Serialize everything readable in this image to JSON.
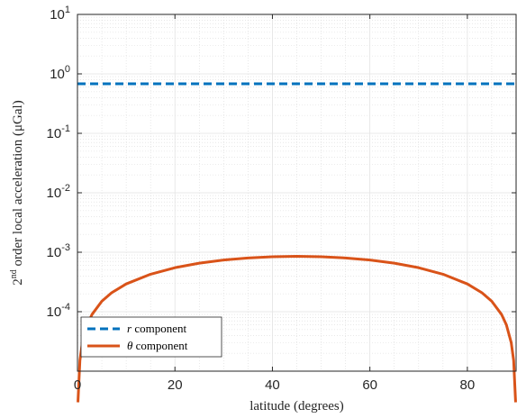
{
  "chart_data": {
    "type": "line",
    "xlabel": "latitude (degrees)",
    "ylabel": "2nd order local acceleration (μGal)",
    "ylabel_parts": {
      "base": "2",
      "sup": "nd",
      "rest": " order local acceleration (μGal)"
    },
    "xlim": [
      0,
      90
    ],
    "ylim": [
      1e-05,
      10
    ],
    "yscale": "log",
    "grid": true,
    "minor_grid": true,
    "legend_position": "bottom-left",
    "x_ticks": [
      0,
      20,
      40,
      60,
      80
    ],
    "x_tick_labels": [
      "0",
      "20",
      "40",
      "60",
      "80"
    ],
    "y_ticks": [
      {
        "value": 10,
        "base": "10",
        "exp": "1"
      },
      {
        "value": 1,
        "base": "10",
        "exp": "0"
      },
      {
        "value": 0.1,
        "base": "10",
        "exp": "-1"
      },
      {
        "value": 0.01,
        "base": "10",
        "exp": "-2"
      },
      {
        "value": 0.001,
        "base": "10",
        "exp": "-3"
      },
      {
        "value": 0.0001,
        "base": "10",
        "exp": "-4"
      }
    ],
    "series": [
      {
        "name": "r component",
        "name_parts": {
          "italic": "r",
          "rest": " component"
        },
        "color": "#0072BD",
        "style": "dashed",
        "x": [
          0,
          90
        ],
        "y": [
          0.68,
          0.68
        ]
      },
      {
        "name": "θ component",
        "name_parts": {
          "italic": "θ",
          "rest": " component"
        },
        "color": "#D95319",
        "style": "solid",
        "x": [
          0.1,
          0.5,
          1,
          2,
          3,
          5,
          7,
          10,
          15,
          20,
          25,
          30,
          35,
          40,
          45,
          50,
          55,
          60,
          65,
          70,
          75,
          80,
          83,
          85,
          87,
          88,
          89,
          89.5,
          89.9
        ],
        "y": [
          3e-06,
          1.51e-05,
          3.02e-05,
          6.03e-05,
          9.03e-05,
          0.00015,
          0.000208,
          0.000293,
          0.000427,
          0.00055,
          0.000655,
          0.00074,
          0.000802,
          0.00084,
          0.000853,
          0.00084,
          0.000802,
          0.00074,
          0.000655,
          0.00055,
          0.000427,
          0.000293,
          0.000208,
          0.00015,
          9.03e-05,
          6.03e-05,
          3.02e-05,
          1.51e-05,
          3e-06
        ]
      }
    ]
  }
}
